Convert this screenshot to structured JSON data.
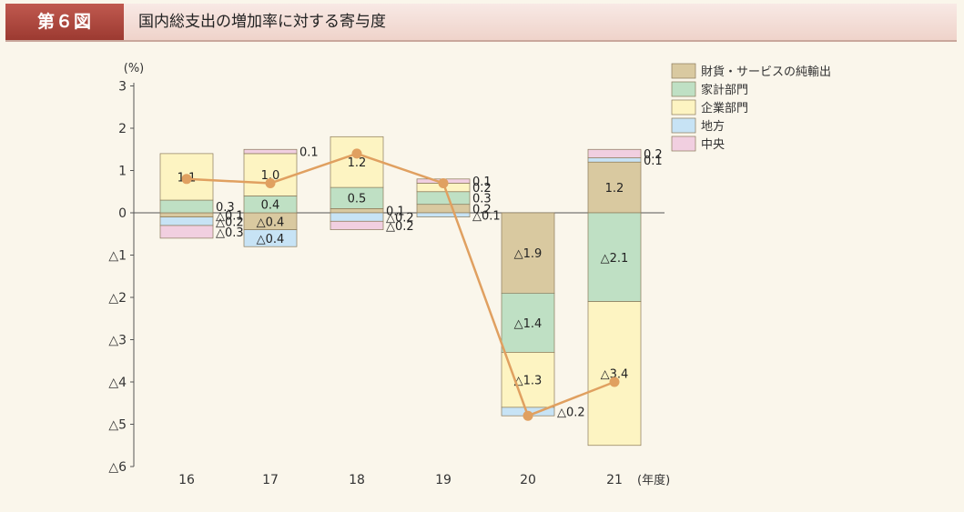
{
  "figure": {
    "badge": "第６図",
    "title": "国内総支出の増加率に対する寄与度"
  },
  "chart_data": {
    "type": "bar",
    "stacked": true,
    "y_unit": "(%)",
    "x_unit": "(年度)",
    "ylim": [
      -6,
      3
    ],
    "yticks": [
      {
        "v": 3,
        "label": "3"
      },
      {
        "v": 2,
        "label": "2"
      },
      {
        "v": 1,
        "label": "1"
      },
      {
        "v": 0,
        "label": "0"
      },
      {
        "v": -1,
        "label": "△1"
      },
      {
        "v": -2,
        "label": "△2"
      },
      {
        "v": -3,
        "label": "△3"
      },
      {
        "v": -4,
        "label": "△4"
      },
      {
        "v": -5,
        "label": "△5"
      },
      {
        "v": -6,
        "label": "△6"
      }
    ],
    "categories": [
      "16",
      "17",
      "18",
      "19",
      "20",
      "21"
    ],
    "series": [
      {
        "name": "財貨・サービスの純輸出",
        "color": "#d9c9a0",
        "values": [
          -0.1,
          -0.4,
          0.1,
          0.2,
          -1.9,
          1.2
        ],
        "labels": [
          "△0.1",
          "△0.4",
          "0.1",
          "0.2",
          "△1.9",
          "1.2"
        ]
      },
      {
        "name": "家計部門",
        "color": "#bfe0c4",
        "values": [
          0.3,
          0.4,
          0.5,
          0.3,
          -1.4,
          -2.1
        ],
        "labels": [
          "0.3",
          "0.4",
          "0.5",
          "0.3",
          "△1.4",
          "△2.1"
        ]
      },
      {
        "name": "企業部門",
        "color": "#fdf4c2",
        "values": [
          1.1,
          1.0,
          1.2,
          0.2,
          -1.3,
          -3.4
        ],
        "labels": [
          "1.1",
          "1.0",
          "1.2",
          "0.2",
          "△1.3",
          "△3.4"
        ]
      },
      {
        "name": "地方",
        "color": "#c7e3f5",
        "values": [
          -0.2,
          -0.4,
          -0.2,
          -0.1,
          -0.2,
          0.1
        ],
        "labels": [
          "△0.2",
          "△0.4",
          "△0.2",
          "△0.1",
          "△0.2",
          "0.1"
        ]
      },
      {
        "name": "中央",
        "color": "#f1cfe0",
        "values": [
          -0.3,
          0.1,
          -0.2,
          0.1,
          0.0,
          0.2
        ],
        "labels": [
          "△0.3",
          "0.1",
          "△0.2",
          "0.1",
          "0.0",
          "0.2"
        ]
      }
    ],
    "total_line": {
      "color": "#e0a060",
      "values": [
        0.8,
        0.7,
        1.4,
        0.7,
        -4.8,
        -4.0
      ]
    }
  }
}
